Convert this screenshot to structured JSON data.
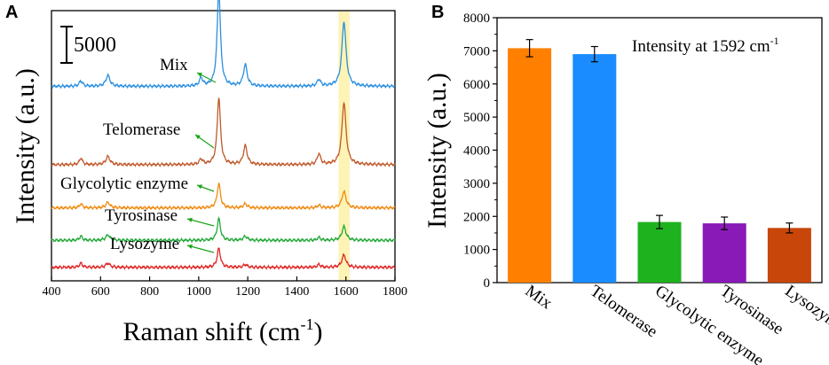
{
  "chart_data": [
    {
      "panel": "A",
      "type": "line",
      "xlabel": "Raman shift (cm",
      "xlabel_sup": "-1",
      "xlabel_close": ")",
      "ylabel": "Intensity (a.u.)",
      "xlim": [
        400,
        1800
      ],
      "xticks": [
        400,
        600,
        800,
        1000,
        1200,
        1400,
        1600,
        1800
      ],
      "scale_bar_label": "5000",
      "highlight_band": [
        1570,
        1615
      ],
      "series": [
        {
          "name": "Mix",
          "color": "#2b8fe0",
          "offset": 0.72,
          "peaks": [
            [
              520,
              0.02,
              8
            ],
            [
              630,
              0.04,
              10
            ],
            [
              1010,
              0.03,
              8
            ],
            [
              1082,
              0.36,
              8
            ],
            [
              1190,
              0.08,
              9
            ],
            [
              1490,
              0.025,
              8
            ],
            [
              1592,
              0.24,
              10
            ]
          ]
        },
        {
          "name": "Telomerase",
          "color": "#c0592b",
          "offset": 0.43,
          "peaks": [
            [
              520,
              0.025,
              7
            ],
            [
              630,
              0.03,
              10
            ],
            [
              1010,
              0.02,
              8
            ],
            [
              1082,
              0.25,
              8
            ],
            [
              1190,
              0.07,
              9
            ],
            [
              1490,
              0.04,
              8
            ],
            [
              1592,
              0.23,
              10
            ]
          ]
        },
        {
          "name": "Glycolytic enzyme",
          "color": "#f08a10",
          "offset": 0.27,
          "peaks": [
            [
              520,
              0.015,
              7
            ],
            [
              630,
              0.02,
              10
            ],
            [
              1082,
              0.09,
              8
            ],
            [
              1190,
              0.015,
              9
            ],
            [
              1490,
              0.01,
              8
            ],
            [
              1592,
              0.06,
              10
            ]
          ]
        },
        {
          "name": "Tyrosinase",
          "color": "#24a83a",
          "offset": 0.15,
          "peaks": [
            [
              520,
              0.015,
              7
            ],
            [
              630,
              0.02,
              10
            ],
            [
              1082,
              0.08,
              8
            ],
            [
              1190,
              0.015,
              9
            ],
            [
              1490,
              0.01,
              8
            ],
            [
              1592,
              0.05,
              10
            ]
          ]
        },
        {
          "name": "Lysozyme",
          "color": "#e02424",
          "offset": 0.05,
          "peaks": [
            [
              520,
              0.015,
              7
            ],
            [
              630,
              0.015,
              10
            ],
            [
              1082,
              0.07,
              8
            ],
            [
              1190,
              0.01,
              9
            ],
            [
              1490,
              0.01,
              8
            ],
            [
              1592,
              0.045,
              10
            ]
          ]
        }
      ]
    },
    {
      "panel": "B",
      "type": "bar",
      "ylabel": "Intensity (a.u.)",
      "annotation": "Intensity at 1592 cm",
      "annotation_sup": "-1",
      "ylim": [
        0,
        8000
      ],
      "yticks": [
        0,
        1000,
        2000,
        3000,
        4000,
        5000,
        6000,
        7000,
        8000
      ],
      "categories": [
        "Mix",
        "Telomerase",
        "Glycolytic enzyme",
        "Tyrosinase",
        "Lysozyme"
      ],
      "values": [
        7080,
        6900,
        1830,
        1790,
        1650
      ],
      "errors": [
        260,
        230,
        200,
        190,
        150
      ],
      "colors": [
        "#ff8000",
        "#1a8cff",
        "#1fb21f",
        "#8a1ab8",
        "#c8460a"
      ]
    }
  ]
}
